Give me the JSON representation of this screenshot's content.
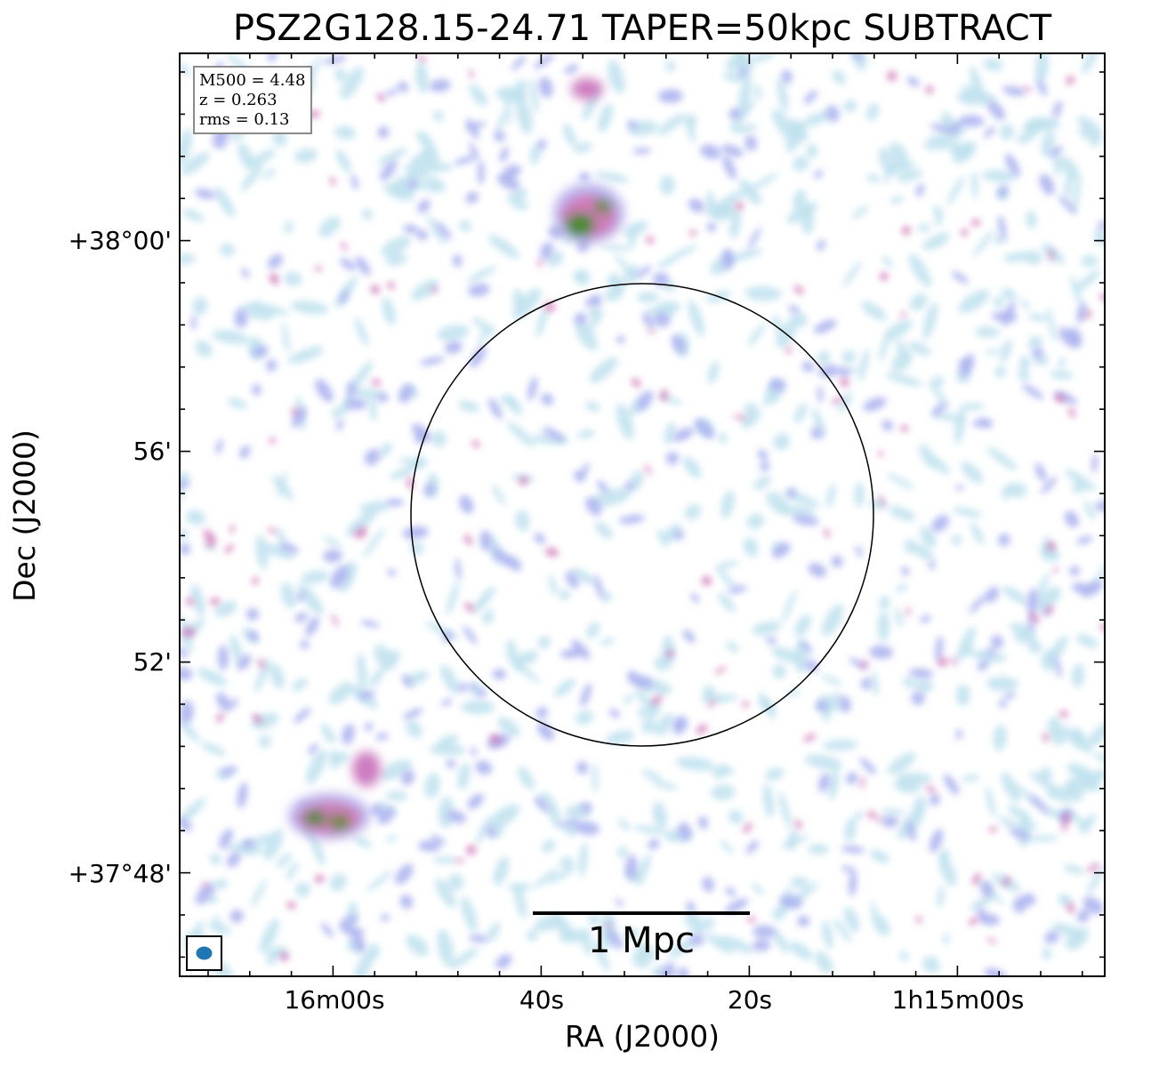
{
  "title": "PSZ2G128.15-24.71 TAPER=50kpc SUBTRACT",
  "axes": {
    "xlabel": "RA (J2000)",
    "ylabel": "Dec (J2000)",
    "xticks": [
      "16m00s",
      "40s",
      "20s",
      "1h15m00s"
    ],
    "yticks": [
      "+38°00'",
      "56'",
      "52'",
      "+37°48'"
    ]
  },
  "info": {
    "m500": "M500 = 4.48",
    "z": "z = 0.263",
    "rms": "rms = 0.13"
  },
  "scale_bar": {
    "label": "1 Mpc"
  },
  "colors": {
    "low_emission": "#bfe2ee",
    "mid_emission": "#aeb5f0",
    "high_emission": "#cc6fb2",
    "peak_emission": "#3e7d30",
    "beam": "#1f77b4",
    "frame": "#000000"
  }
}
